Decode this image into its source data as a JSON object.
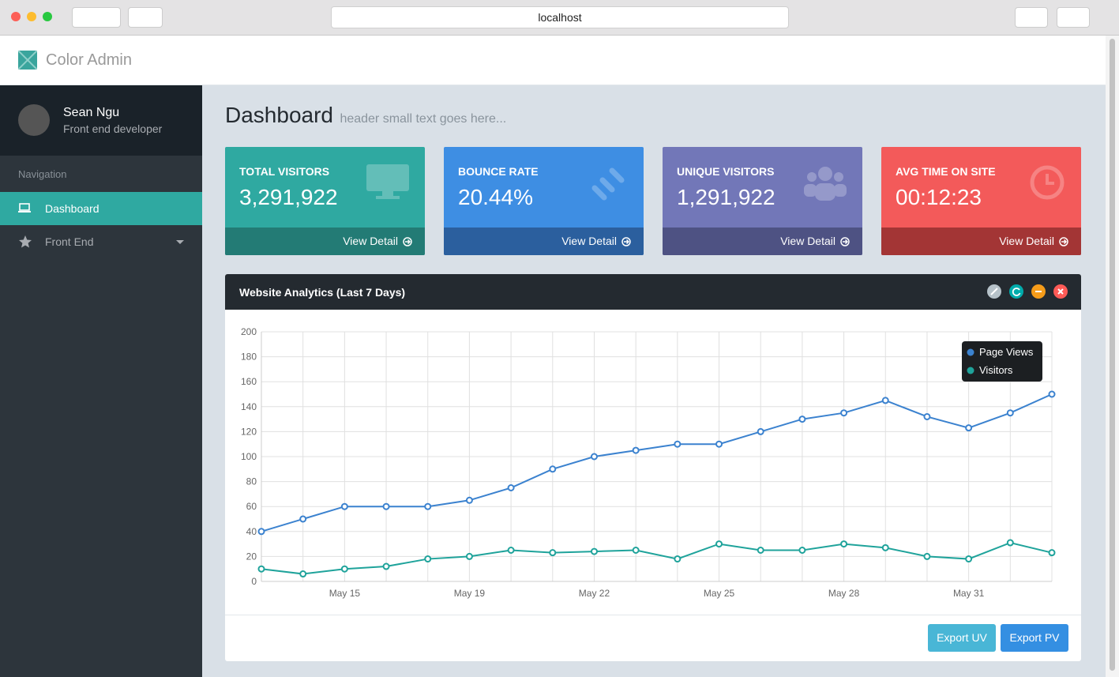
{
  "browser": {
    "url": "localhost"
  },
  "header": {
    "brand": "Color Admin"
  },
  "sidebar": {
    "user": {
      "name": "Sean Ngu",
      "role": "Front end developer"
    },
    "nav_heading": "Navigation",
    "items": [
      "Dashboard",
      "Front End"
    ]
  },
  "page_header": {
    "title": "Dashboard",
    "subtitle": "header small text goes here..."
  },
  "stats": [
    {
      "label": "TOTAL VISITORS",
      "value": "3,291,922",
      "link": "View Detail"
    },
    {
      "label": "BOUNCE RATE",
      "value": "20.44%",
      "link": "View Detail"
    },
    {
      "label": "UNIQUE VISITORS",
      "value": "1,291,922",
      "link": "View Detail"
    },
    {
      "label": "AVG TIME ON SITE",
      "value": "00:12:23",
      "link": "View Detail"
    }
  ],
  "panel": {
    "title": "Website Analytics (Last 7 Days)"
  },
  "chart_data": {
    "type": "line",
    "categories": [
      null,
      null,
      "May 15",
      null,
      null,
      "May 19",
      null,
      null,
      "May 22",
      null,
      null,
      "May 25",
      null,
      null,
      "May 28",
      null,
      null,
      "May 31",
      null,
      null
    ],
    "series": [
      {
        "name": "Page Views",
        "color": "#3b82cf",
        "values": [
          40,
          50,
          60,
          60,
          60,
          65,
          75,
          90,
          100,
          105,
          110,
          110,
          120,
          130,
          135,
          145,
          132,
          123,
          135,
          150
        ]
      },
      {
        "name": "Visitors",
        "color": "#1fa39b",
        "values": [
          10,
          6,
          10,
          12,
          18,
          20,
          25,
          23,
          24,
          25,
          18,
          30,
          25,
          25,
          30,
          27,
          20,
          18,
          31,
          23
        ]
      }
    ],
    "ylim": [
      0,
      200
    ],
    "yticks": [
      0,
      20,
      40,
      60,
      80,
      100,
      120,
      140,
      160,
      180,
      200
    ],
    "grid": true,
    "legend": "top-right"
  },
  "buttons": [
    "Export UV",
    "Export PV"
  ]
}
